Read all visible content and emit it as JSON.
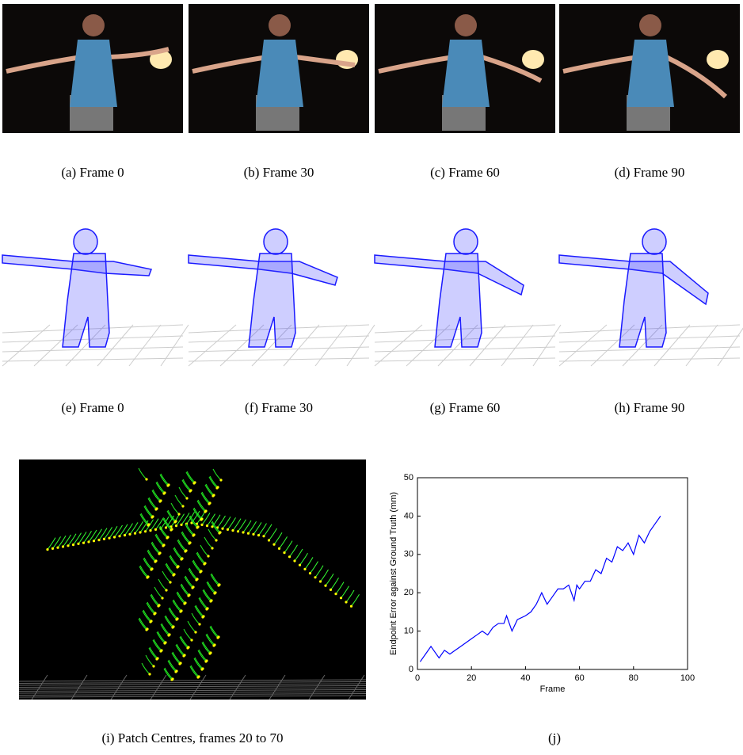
{
  "captions": [
    "(a) Frame 0",
    "(b) Frame 30",
    "(c) Frame 60",
    "(d) Frame 90",
    "(e) Frame 0",
    "(f) Frame 30",
    "(g) Frame 60",
    "(h) Frame 90",
    "(i) Patch Centres, frames 20 to 70",
    "(j)"
  ],
  "chart_data": {
    "type": "line",
    "x_label": "Frame",
    "y_label": "Endpoint Error against Ground Truth (mm)",
    "x": [
      1,
      3,
      5,
      6,
      8,
      10,
      12,
      14,
      16,
      18,
      20,
      22,
      24,
      26,
      28,
      30,
      32,
      33,
      35,
      37,
      40,
      42,
      44,
      46,
      48,
      50,
      52,
      54,
      56,
      58,
      59,
      60,
      62,
      64,
      66,
      68,
      70,
      72,
      74,
      76,
      78,
      80,
      82,
      84,
      86,
      88,
      90
    ],
    "series": [
      {
        "color": "#0000ff",
        "values": [
          2,
          4,
          6,
          5,
          3,
          5,
          4,
          5,
          6,
          7,
          8,
          9,
          10,
          9,
          11,
          12,
          12,
          14,
          10,
          13,
          14,
          15,
          17,
          20,
          17,
          19,
          21,
          21,
          22,
          18,
          22,
          21,
          23,
          23,
          26,
          25,
          29,
          28,
          32,
          31,
          33,
          30,
          35,
          33,
          36,
          38,
          40
        ]
      }
    ],
    "xlim": [
      0,
      100
    ],
    "xticks": [
      0,
      20,
      40,
      60,
      80,
      100
    ],
    "ylim": [
      0,
      50
    ],
    "yticks": [
      0,
      10,
      20,
      30,
      40,
      50
    ]
  }
}
